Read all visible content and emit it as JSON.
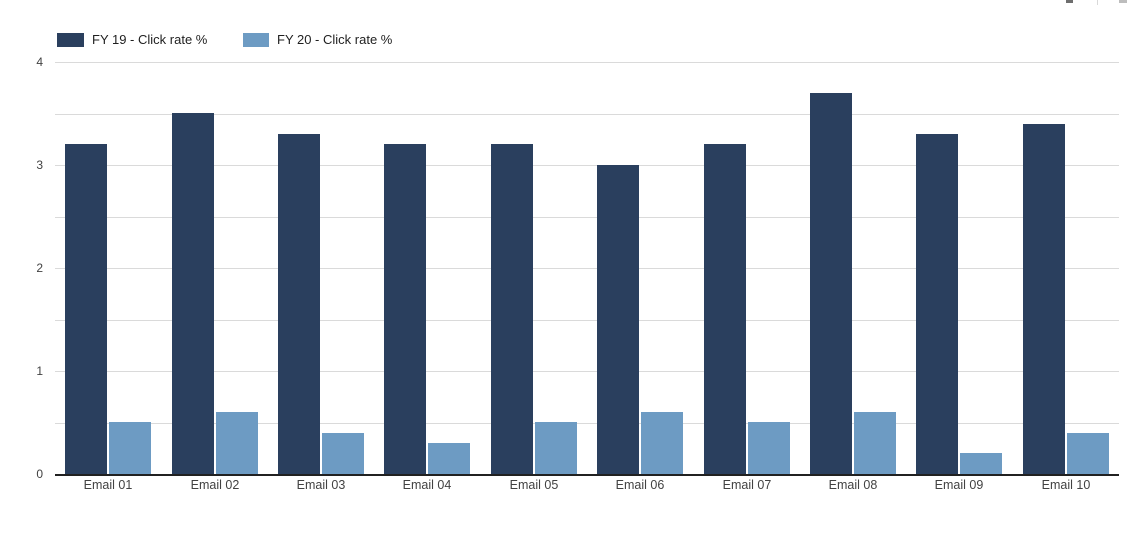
{
  "chart_data": {
    "type": "bar",
    "title": "",
    "xlabel": "",
    "ylabel": "",
    "categories": [
      "Email 01",
      "Email 02",
      "Email 03",
      "Email 04",
      "Email 05",
      "Email 06",
      "Email 07",
      "Email 08",
      "Email 09",
      "Email 10"
    ],
    "series": [
      {
        "name": "FY 19 - Click rate %",
        "color": "#2a3f5e",
        "values": [
          3.2,
          3.5,
          3.3,
          3.2,
          3.2,
          3.0,
          3.2,
          3.7,
          3.3,
          3.4
        ]
      },
      {
        "name": "FY 20 - Click rate %",
        "color": "#6d9bc3",
        "values": [
          0.5,
          0.6,
          0.4,
          0.3,
          0.5,
          0.6,
          0.5,
          0.6,
          0.2,
          0.4
        ]
      }
    ],
    "ylim": [
      0,
      4
    ],
    "yticks": [
      0,
      1,
      2,
      3,
      4
    ],
    "grid": {
      "horizontal": true,
      "interval": 0.5
    },
    "legend_position": "top-left"
  },
  "colors": {
    "background": "#ffffff",
    "gridline": "#dadada",
    "axis_line": "#212121",
    "axis_label": "#424242",
    "legend_text": "#1f1f1f",
    "fragment_dark": "#6e6e6e",
    "fragment_light": "#bdbdbd",
    "fragment_divider": "#d9d9d9"
  },
  "icons": {
    "top_right": [
      "cropped-toolbar-icon",
      "cropped-toolbar-divider",
      "cropped-toolbar-icon"
    ]
  }
}
